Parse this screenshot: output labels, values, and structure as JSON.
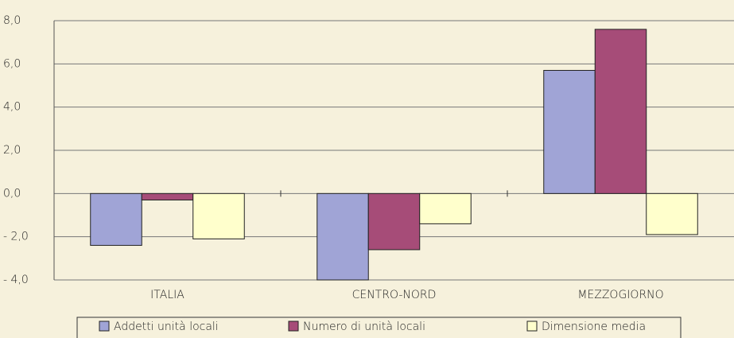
{
  "chart_data": {
    "type": "bar",
    "categories": [
      "ITALIA",
      "CENTRO-NORD",
      "MEZZOGIORNO"
    ],
    "series": [
      {
        "name": "Addetti unità locali",
        "color": "#a0a4d6",
        "values": [
          -2.4,
          -4.0,
          5.7
        ]
      },
      {
        "name": "Numero di unità locali",
        "color": "#a64c78",
        "values": [
          -0.3,
          -2.6,
          7.6
        ]
      },
      {
        "name": "Dimensione media",
        "color": "#ffffcc",
        "values": [
          -2.1,
          -1.4,
          -1.9
        ]
      }
    ],
    "ylim": [
      -4,
      8
    ],
    "yticks": [
      {
        "value": -4,
        "label": "- 4,0"
      },
      {
        "value": -2,
        "label": "- 2,0"
      },
      {
        "value": 0,
        "label": "0,0"
      },
      {
        "value": 2,
        "label": "2,0"
      },
      {
        "value": 4,
        "label": "4,0"
      },
      {
        "value": 6,
        "label": "6,0"
      },
      {
        "value": 8,
        "label": "8,0"
      }
    ],
    "grid": true,
    "legend": "bottom"
  }
}
